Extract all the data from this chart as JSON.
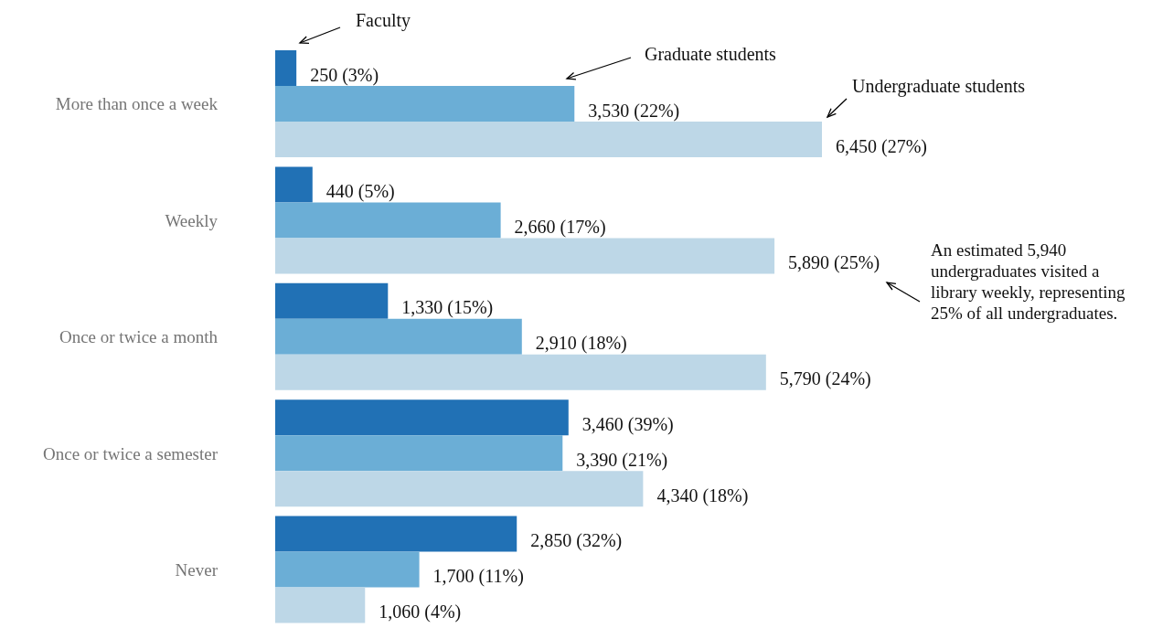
{
  "chart_data": {
    "type": "bar",
    "orientation": "horizontal",
    "categories": [
      "More than once a week",
      "Weekly",
      "Once or twice a month",
      "Once or twice a semester",
      "Never"
    ],
    "series": [
      {
        "name": "Faculty",
        "color": "#2171b5",
        "values": [
          250,
          440,
          1330,
          3460,
          2850
        ],
        "value_labels": [
          "250 (3%)",
          "440 (5%)",
          "1,330 (15%)",
          "3,460 (39%)",
          "2,850 (32%)"
        ]
      },
      {
        "name": "Graduate students",
        "color": "#6baed6",
        "values": [
          3530,
          2660,
          2910,
          3390,
          1700
        ],
        "value_labels": [
          "3,530 (22%)",
          "2,660 (17%)",
          "2,910 (18%)",
          "3,390 (21%)",
          "1,700 (11%)"
        ]
      },
      {
        "name": "Undergraduate students",
        "color": "#bdd7e7",
        "values": [
          6450,
          5890,
          5790,
          4340,
          1060
        ],
        "value_labels": [
          "6,450 (27%)",
          "5,890 (25%)",
          "5,790 (24%)",
          "4,340 (18%)",
          "1,060 (4%)"
        ]
      }
    ],
    "annotations": [
      "An estimated 5,940 undergraduates visited a library weekly, representing 25% of all undergraduates."
    ],
    "legend": false,
    "grid": false
  }
}
